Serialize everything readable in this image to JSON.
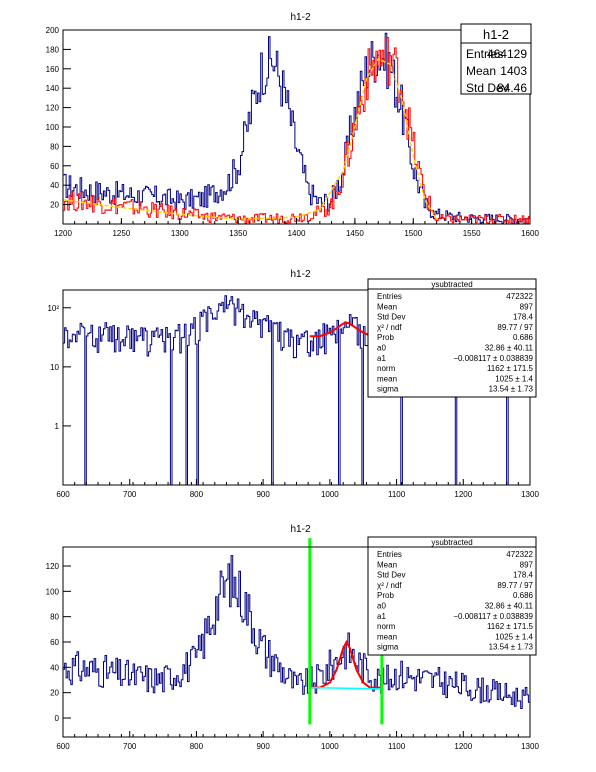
{
  "chart_data": [
    {
      "type": "histogram",
      "title": "h1-2",
      "xlim": [
        1200,
        1600
      ],
      "ylim": [
        0,
        200
      ],
      "log_y": false,
      "x_ticks": [
        "1200",
        "1250",
        "1300",
        "1350",
        "1400",
        "1450",
        "1500",
        "1550",
        "1600"
      ],
      "y_ticks": [
        "20",
        "40",
        "60",
        "80",
        "100",
        "120",
        "140",
        "160",
        "180",
        "200"
      ],
      "series": [
        {
          "color": "#000080",
          "style": "histogram",
          "x": [
            1200,
            1220,
            1240,
            1260,
            1280,
            1300,
            1320,
            1340,
            1350,
            1360,
            1370,
            1380,
            1390,
            1400,
            1410,
            1420,
            1430,
            1440,
            1450,
            1460,
            1470,
            1480,
            1490,
            1500,
            1510,
            1520,
            1540,
            1560,
            1600
          ],
          "y": [
            40,
            35,
            32,
            30,
            28,
            24,
            26,
            40,
            60,
            110,
            158,
            170,
            135,
            80,
            35,
            22,
            25,
            55,
            115,
            160,
            178,
            165,
            120,
            60,
            20,
            10,
            7,
            6,
            5
          ]
        },
        {
          "color": "#ff0000",
          "style": "histogram",
          "x": [
            1200,
            1240,
            1280,
            1320,
            1360,
            1400,
            1420,
            1430,
            1440,
            1450,
            1460,
            1470,
            1480,
            1490,
            1500,
            1510,
            1520
          ],
          "y": [
            25,
            20,
            14,
            8,
            5,
            7,
            12,
            20,
            50,
            100,
            150,
            170,
            172,
            145,
            80,
            30,
            5
          ]
        },
        {
          "color": "#ffd700",
          "style": "line",
          "x": [
            1200,
            1250,
            1300,
            1350,
            1400,
            1420,
            1440,
            1450,
            1460,
            1470,
            1480,
            1490,
            1500,
            1510,
            1520
          ],
          "y": [
            25,
            17,
            10,
            5,
            7,
            15,
            55,
            100,
            150,
            170,
            165,
            130,
            70,
            25,
            5
          ]
        }
      ],
      "stats": {
        "name": "h1-2",
        "rows": [
          [
            "Entries",
            "464129"
          ],
          [
            "Mean",
            "1403"
          ],
          [
            "Std Dev",
            "84.46"
          ]
        ]
      }
    },
    {
      "type": "histogram",
      "title": "h1-2",
      "xlim": [
        600,
        1300
      ],
      "ylim": [
        0.1,
        200
      ],
      "log_y": true,
      "x_ticks": [
        "600",
        "700",
        "800",
        "900",
        "1000",
        "1100",
        "1200",
        "1300"
      ],
      "y_ticks": [
        "1",
        "10",
        "10²"
      ],
      "series": [
        {
          "color": "#000080",
          "style": "histogram",
          "x": [
            600,
            650,
            700,
            750,
            800,
            830,
            850,
            870,
            900,
            950,
            980,
            1000,
            1025,
            1050,
            1080,
            1100,
            1150,
            1200,
            1250,
            1300
          ],
          "y": [
            40,
            38,
            33,
            30,
            45,
            90,
            110,
            95,
            55,
            25,
            30,
            40,
            55,
            40,
            28,
            35,
            30,
            25,
            20,
            15
          ]
        },
        {
          "color": "#ff0000",
          "style": "fit",
          "x": [
            970,
            985,
            1000,
            1010,
            1020,
            1025,
            1030,
            1040,
            1050,
            1060,
            1070,
            1078
          ],
          "y": [
            33,
            33,
            38,
            45,
            54,
            56,
            54,
            45,
            38,
            34,
            33,
            33
          ]
        }
      ],
      "stats": {
        "name": "ysubtracted",
        "rows": [
          [
            "Entries",
            "472322"
          ],
          [
            "Mean",
            "897"
          ],
          [
            "Std Dev",
            "178.4"
          ],
          [
            "χ² / ndf",
            "89.77 / 97"
          ],
          [
            "Prob",
            "0.686"
          ],
          [
            "a0",
            "32.86 ± 40.11"
          ],
          [
            "a1",
            "−0.008117 ± 0.038839"
          ],
          [
            "norm",
            "1162 ± 171.5"
          ],
          [
            "mean",
            "1025 ± 1.4"
          ],
          [
            "sigma",
            "13.54 ± 1.73"
          ]
        ]
      }
    },
    {
      "type": "histogram",
      "title": "h1-2",
      "xlim": [
        600,
        1300
      ],
      "ylim": [
        -15,
        135
      ],
      "log_y": false,
      "x_ticks": [
        "600",
        "700",
        "800",
        "900",
        "1000",
        "1100",
        "1200",
        "1300"
      ],
      "y_ticks": [
        "0",
        "20",
        "40",
        "60",
        "80",
        "100",
        "120"
      ],
      "series": [
        {
          "color": "#000080",
          "style": "histogram",
          "x": [
            600,
            650,
            700,
            750,
            800,
            830,
            850,
            870,
            900,
            950,
            980,
            1000,
            1025,
            1050,
            1080,
            1100,
            1150,
            1200,
            1250,
            1300
          ],
          "y": [
            40,
            38,
            33,
            30,
            45,
            90,
            110,
            95,
            55,
            25,
            30,
            40,
            55,
            40,
            28,
            35,
            30,
            25,
            20,
            15
          ]
        },
        {
          "color": "#ff0000",
          "style": "fit",
          "x": [
            970,
            985,
            1000,
            1010,
            1020,
            1025,
            1030,
            1040,
            1050,
            1060,
            1070,
            1078
          ],
          "y": [
            24,
            24,
            28,
            38,
            55,
            60,
            55,
            38,
            28,
            24,
            24,
            24
          ]
        },
        {
          "color": "#00ffff",
          "style": "line",
          "x": [
            970,
            1078
          ],
          "y": [
            24,
            23
          ]
        }
      ],
      "vlines": [
        {
          "x": 970,
          "color": "#00ff00",
          "y_from": -5,
          "y_to": 142
        },
        {
          "x": 1078,
          "color": "#00ff00",
          "y_from": -5,
          "y_to": 140
        }
      ],
      "stats": {
        "name": "ysubtracted",
        "rows": [
          [
            "Entries",
            "472322"
          ],
          [
            "Mean",
            "897"
          ],
          [
            "Std Dev",
            "178.4"
          ],
          [
            "χ² / ndf",
            "89.77 / 97"
          ],
          [
            "Prob",
            "0.686"
          ],
          [
            "a0",
            "32.86 ± 40.11"
          ],
          [
            "a1",
            "−0.008117 ± 0.038839"
          ],
          [
            "norm",
            "1162 ± 171.5"
          ],
          [
            "mean",
            "1025 ± 1.4"
          ],
          [
            "sigma",
            "13.54 ± 1.73"
          ]
        ]
      }
    }
  ]
}
